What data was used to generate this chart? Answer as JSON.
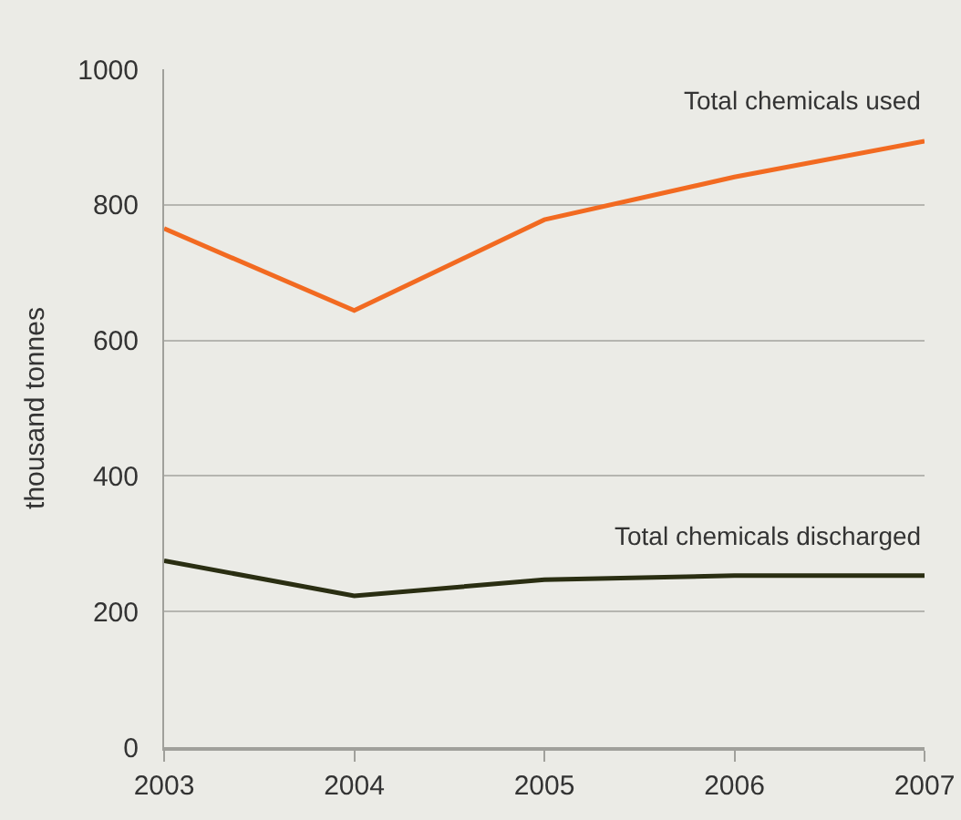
{
  "chart_data": {
    "type": "line",
    "ylabel": "thousand tonnes",
    "x": [
      2003,
      2004,
      2005,
      2006,
      2007
    ],
    "series": [
      {
        "name": "Total chemicals used",
        "color": "#f26a21",
        "values": [
          765,
          644,
          778,
          841,
          894
        ]
      },
      {
        "name": "Total chemicals discharged",
        "color": "#2a2e12",
        "values": [
          275,
          223,
          247,
          253,
          253
        ]
      }
    ],
    "xlim": [
      2003,
      2007
    ],
    "xticks": [
      2003,
      2004,
      2005,
      2006,
      2007
    ],
    "ylim": [
      0,
      1000
    ],
    "yticks": [
      0,
      200,
      400,
      600,
      800,
      1000
    ],
    "grid": "y",
    "legend": false,
    "marker": "none",
    "line_style": "solid"
  }
}
